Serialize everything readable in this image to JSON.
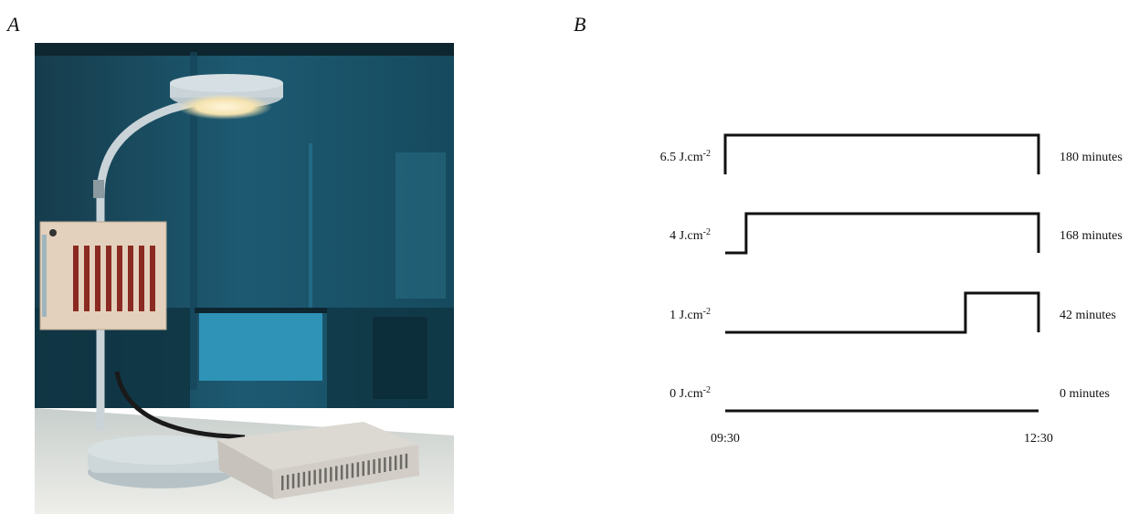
{
  "panels": {
    "a_label": "A",
    "b_label": "B"
  },
  "photo": {
    "subject": "desk lamp with LED light panel and control box"
  },
  "diagram": {
    "start_time": "09:30",
    "end_time": "12:30",
    "rows": [
      {
        "dose_value": "6.5 J.cm",
        "dose_exp": "-2",
        "duration": "180 minutes",
        "on_from": "09:30",
        "on_to": "12:30"
      },
      {
        "dose_value": "4 J.cm",
        "dose_exp": "-2",
        "duration": "168 minutes",
        "on_from": "09:42",
        "on_to": "12:30"
      },
      {
        "dose_value": "1 J.cm",
        "dose_exp": "-2",
        "duration": "42 minutes",
        "on_from": "11:48",
        "on_to": "12:30"
      },
      {
        "dose_value": "0 J.cm",
        "dose_exp": "-2",
        "duration": "0 minutes",
        "on_from": null,
        "on_to": null
      }
    ]
  }
}
